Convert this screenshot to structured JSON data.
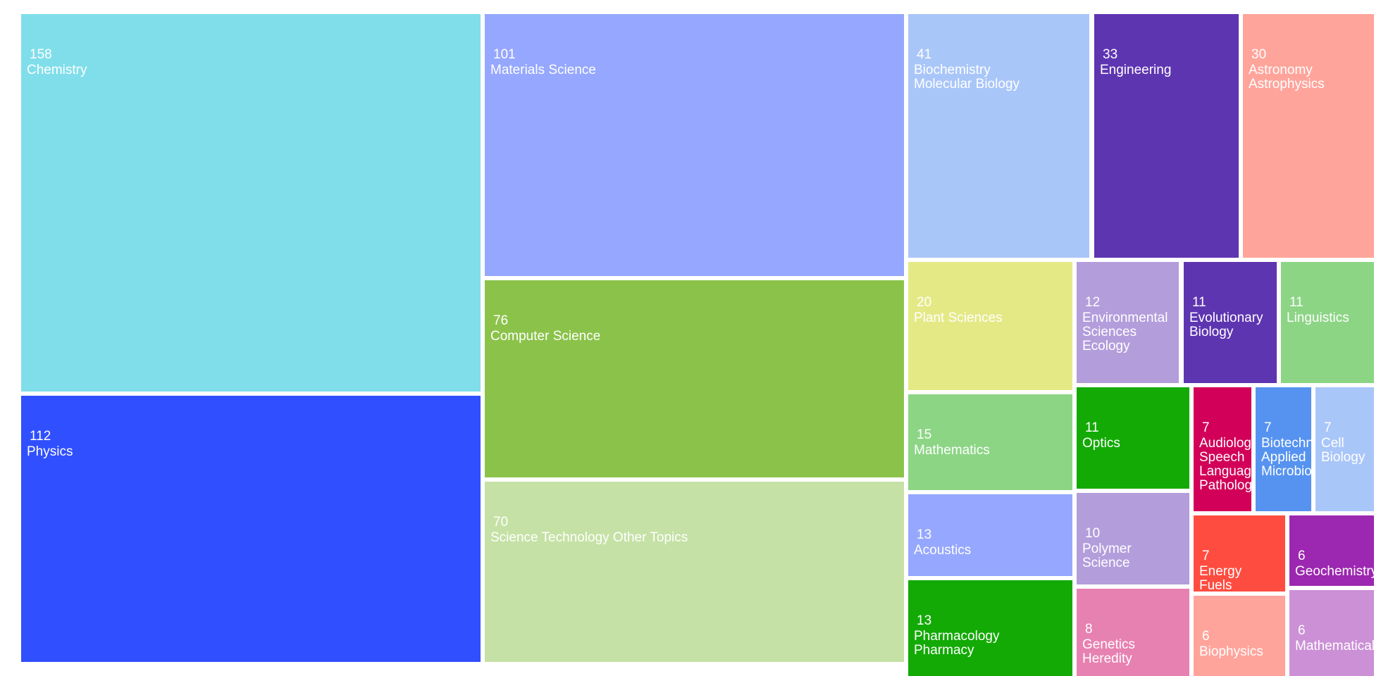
{
  "chart_data": {
    "type": "treemap",
    "nodes": [
      {
        "label": "Chemistry",
        "value": 158,
        "color": "#80deea"
      },
      {
        "label": "Physics",
        "value": 112,
        "color": "#304ffe"
      },
      {
        "label": "Materials Science",
        "value": 101,
        "color": "#95a7fe"
      },
      {
        "label": "Computer Science",
        "value": 76,
        "color": "#8bc34a"
      },
      {
        "label": "Science Technology Other Topics",
        "value": 70,
        "color": "#c5e1a5"
      },
      {
        "label": "Biochemistry\nMolecular Biology",
        "value": 41,
        "color": "#a9c6f9"
      },
      {
        "label": "Engineering",
        "value": 33,
        "color": "#5e35b1"
      },
      {
        "label": "Astronomy\nAstrophysics",
        "value": 30,
        "color": "#ffa49b"
      },
      {
        "label": "Plant Sciences",
        "value": 20,
        "color": "#e4e986"
      },
      {
        "label": "Environmental\nSciences\nEcology",
        "value": 12,
        "color": "#b39ddb"
      },
      {
        "label": "Evolutionary\nBiology",
        "value": 11,
        "color": "#5e35b1"
      },
      {
        "label": "Linguistics",
        "value": 11,
        "color": "#8cd585"
      },
      {
        "label": "Mathematics",
        "value": 15,
        "color": "#8cd585"
      },
      {
        "label": "Optics",
        "value": 11,
        "color": "#13aa06"
      },
      {
        "label": "Audiology\nSpeech\nLanguage\nPathology",
        "value": 7,
        "color": "#d20058"
      },
      {
        "label": "Biotechnology\nApplied\nMicrobiology",
        "value": 7,
        "color": "#5693f0"
      },
      {
        "label": "Cell\nBiology",
        "value": 7,
        "color": "#a9c6f9"
      },
      {
        "label": "Acoustics",
        "value": 13,
        "color": "#95a7fe"
      },
      {
        "label": "Polymer\nScience",
        "value": 10,
        "color": "#b39ddb"
      },
      {
        "label": "Energy\nFuels",
        "value": 7,
        "color": "#ff4c40"
      },
      {
        "label": "Geochemistry",
        "value": 6,
        "color": "#9c27b0"
      },
      {
        "label": "Pharmacology\nPharmacy",
        "value": 13,
        "color": "#13aa06"
      },
      {
        "label": "Genetics\nHeredity",
        "value": 8,
        "color": "#e781b1"
      },
      {
        "label": "Biophysics",
        "value": 6,
        "color": "#ffa49b"
      },
      {
        "label": "Mathematical",
        "value": 6,
        "color": "#cb90d6"
      }
    ]
  }
}
